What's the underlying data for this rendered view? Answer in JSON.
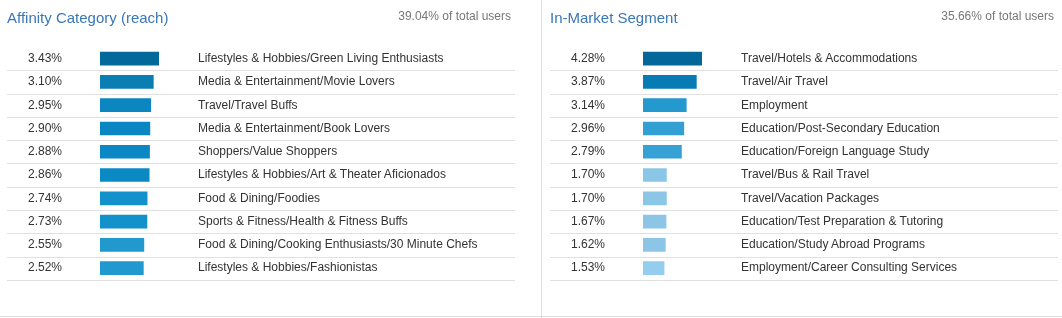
{
  "chart_data": [
    {
      "type": "bar",
      "orientation": "horizontal",
      "title": "Affinity Category (reach)",
      "subtitle": "39.04% of total users",
      "grid": "y",
      "tick_labels": "y",
      "categories": [
        "Lifestyles & Hobbies/Green Living Enthusiasts",
        "Media & Entertainment/Movie Lovers",
        "Travel/Travel Buffs",
        "Media & Entertainment/Book Lovers",
        "Shoppers/Value Shoppers",
        "Lifestyles & Hobbies/Art & Theater Aficionados",
        "Food & Dining/Foodies",
        "Sports & Fitness/Health & Fitness Buffs",
        "Food & Dining/Cooking Enthusiasts/30 Minute Chefs",
        "Lifestyles & Hobbies/Fashionistas"
      ],
      "values": [
        3.43,
        3.1,
        2.95,
        2.9,
        2.88,
        2.86,
        2.74,
        2.73,
        2.55,
        2.52
      ],
      "value_labels": [
        "3.43%",
        "3.10%",
        "2.95%",
        "2.90%",
        "2.88%",
        "2.86%",
        "2.74%",
        "2.73%",
        "2.55%",
        "2.52%"
      ],
      "colors": [
        "#03699b",
        "#0a7db3",
        "#0c86c0",
        "#0a87c2",
        "#0b88c3",
        "#0a89c4",
        "#1391cb",
        "#1391cb",
        "#2199cf",
        "#2199cf"
      ]
    },
    {
      "type": "bar",
      "orientation": "horizontal",
      "title": "In-Market Segment",
      "subtitle": "35.66% of total users",
      "grid": "y",
      "tick_labels": "y",
      "categories": [
        "Travel/Hotels & Accommodations",
        "Travel/Air Travel",
        "Employment",
        "Education/Post-Secondary Education",
        "Education/Foreign Language Study",
        "Travel/Bus & Rail Travel",
        "Travel/Vacation Packages",
        "Education/Test Preparation & Tutoring",
        "Education/Study Abroad Programs",
        "Employment/Career Consulting Services"
      ],
      "values": [
        4.28,
        3.87,
        3.14,
        2.96,
        2.79,
        1.7,
        1.7,
        1.67,
        1.62,
        1.53
      ],
      "value_labels": [
        "4.28%",
        "3.87%",
        "3.14%",
        "2.96%",
        "2.79%",
        "1.70%",
        "1.70%",
        "1.67%",
        "1.62%",
        "1.53%"
      ],
      "colors": [
        "#03679a",
        "#077bb3",
        "#2399d0",
        "#33a0d4",
        "#36a1d5",
        "#8cc6e6",
        "#8cc6e6",
        "#8dc5e6",
        "#8dc5e6",
        "#94cdee"
      ]
    }
  ]
}
